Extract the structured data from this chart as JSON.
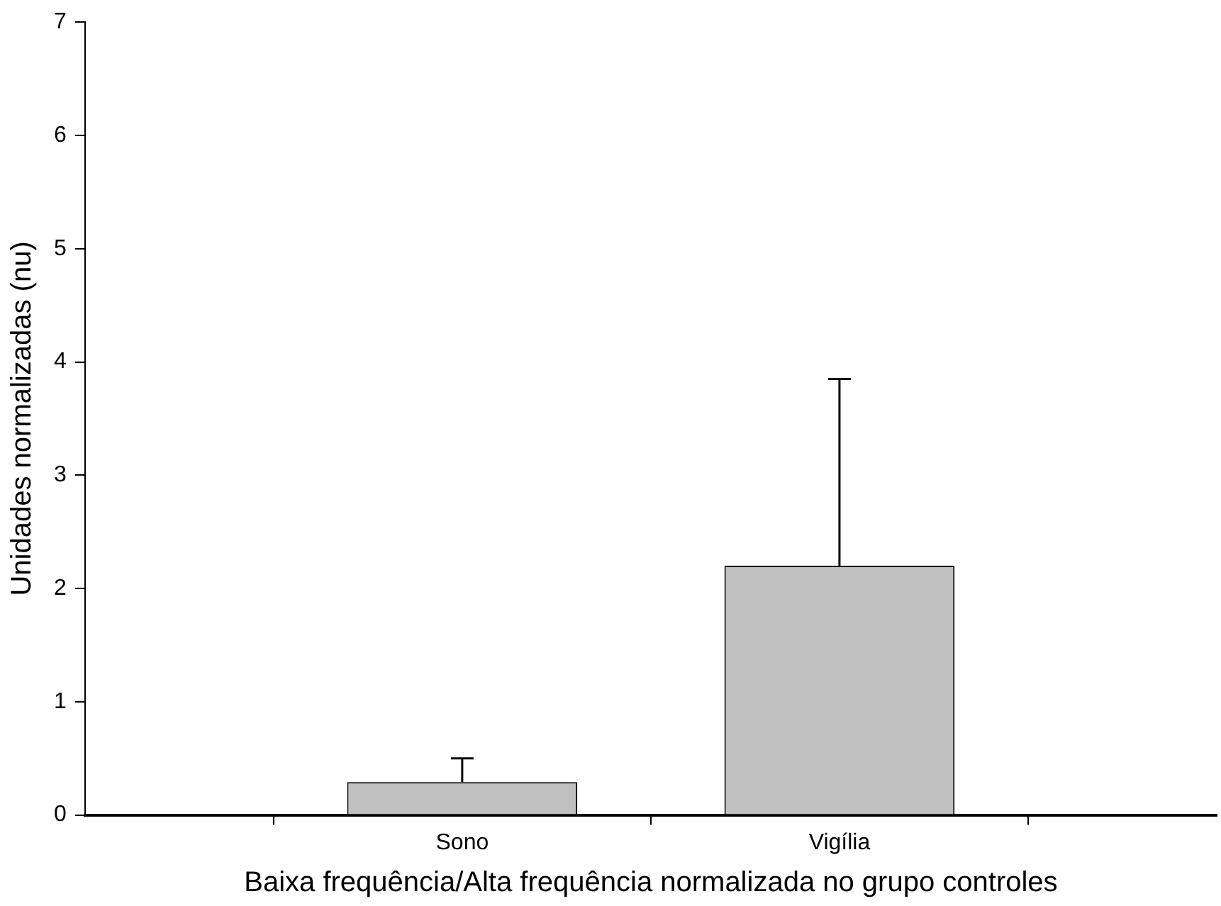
{
  "chart_data": {
    "type": "bar",
    "xlabel": "Baixa frequência/Alta frequência normalizada no grupo controles",
    "ylabel": "Unidades normalizadas (nu)",
    "categories": [
      null,
      "Sono",
      "Vigília",
      null
    ],
    "values": [
      null,
      0.29,
      2.2,
      null
    ],
    "errors": [
      null,
      [
        0.29,
        0.5
      ],
      [
        2.2,
        3.85
      ],
      null
    ],
    "color": "#c0c0c0",
    "ylim": [
      0,
      7
    ],
    "yticks": [
      0,
      1,
      2,
      3,
      4,
      5,
      6,
      7
    ],
    "grid": false,
    "legend": false
  }
}
